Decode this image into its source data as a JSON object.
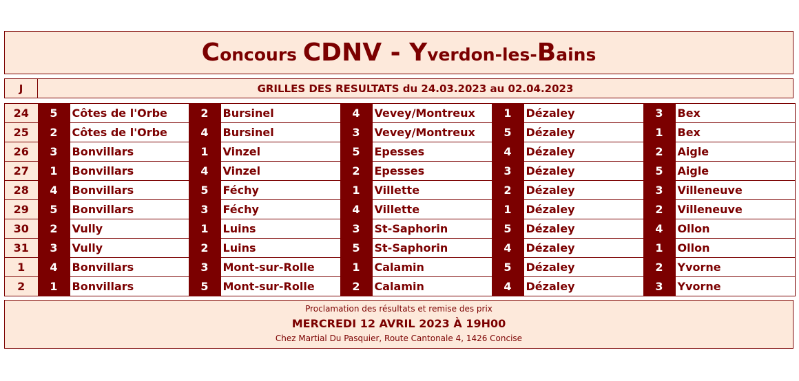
{
  "title": {
    "c": "C",
    "oncours": "oncours ",
    "cdnv": "CDNV",
    "dash": " - ",
    "y": "Y",
    "verdon": "verdon-les-",
    "b": "B",
    "ains": "ains"
  },
  "header": {
    "j": "J",
    "title": "GRILLES DES RESULTATS du 24.03.2023 au 02.04.2023"
  },
  "rows": [
    {
      "day": "24",
      "cells": [
        [
          "5",
          "Côtes de l'Orbe"
        ],
        [
          "2",
          "Bursinel"
        ],
        [
          "4",
          "Vevey/Montreux"
        ],
        [
          "1",
          "Dézaley"
        ],
        [
          "3",
          "Bex"
        ]
      ]
    },
    {
      "day": "25",
      "cells": [
        [
          "2",
          "Côtes de l'Orbe"
        ],
        [
          "4",
          "Bursinel"
        ],
        [
          "3",
          "Vevey/Montreux"
        ],
        [
          "5",
          "Dézaley"
        ],
        [
          "1",
          "Bex"
        ]
      ]
    },
    {
      "day": "26",
      "cells": [
        [
          "3",
          "Bonvillars"
        ],
        [
          "1",
          "Vinzel"
        ],
        [
          "5",
          "Epesses"
        ],
        [
          "4",
          "Dézaley"
        ],
        [
          "2",
          "Aigle"
        ]
      ]
    },
    {
      "day": "27",
      "cells": [
        [
          "1",
          "Bonvillars"
        ],
        [
          "4",
          "Vinzel"
        ],
        [
          "2",
          "Epesses"
        ],
        [
          "3",
          "Dézaley"
        ],
        [
          "5",
          "Aigle"
        ]
      ]
    },
    {
      "day": "28",
      "cells": [
        [
          "4",
          "Bonvillars"
        ],
        [
          "5",
          "Féchy"
        ],
        [
          "1",
          "Villette"
        ],
        [
          "2",
          "Dézaley"
        ],
        [
          "3",
          "Villeneuve"
        ]
      ]
    },
    {
      "day": "29",
      "cells": [
        [
          "5",
          "Bonvillars"
        ],
        [
          "3",
          "Féchy"
        ],
        [
          "4",
          "Villette"
        ],
        [
          "1",
          "Dézaley"
        ],
        [
          "2",
          "Villeneuve"
        ]
      ]
    },
    {
      "day": "30",
      "cells": [
        [
          "2",
          "Vully"
        ],
        [
          "1",
          "Luins"
        ],
        [
          "3",
          "St-Saphorin"
        ],
        [
          "5",
          "Dézaley"
        ],
        [
          "4",
          "Ollon"
        ]
      ]
    },
    {
      "day": "31",
      "cells": [
        [
          "3",
          "Vully"
        ],
        [
          "2",
          "Luins"
        ],
        [
          "5",
          "St-Saphorin"
        ],
        [
          "4",
          "Dézaley"
        ],
        [
          "1",
          "Ollon"
        ]
      ]
    },
    {
      "day": "1",
      "cells": [
        [
          "4",
          "Bonvillars"
        ],
        [
          "3",
          "Mont-sur-Rolle"
        ],
        [
          "1",
          "Calamin"
        ],
        [
          "5",
          "Dézaley"
        ],
        [
          "2",
          "Yvorne"
        ]
      ]
    },
    {
      "day": "2",
      "cells": [
        [
          "1",
          "Bonvillars"
        ],
        [
          "5",
          "Mont-sur-Rolle"
        ],
        [
          "2",
          "Calamin"
        ],
        [
          "4",
          "Dézaley"
        ],
        [
          "3",
          "Yvorne"
        ]
      ]
    }
  ],
  "footer": {
    "line1": "Proclamation des résultats et remise des prix",
    "line2": "MERCREDI 12 AVRIL 2023 À 19H00",
    "line3": "Chez Martial Du Pasquier, Route Cantonale 4, 1426 Concise"
  },
  "colors": {
    "accent": "#7b0000",
    "background": "#fde9db"
  }
}
